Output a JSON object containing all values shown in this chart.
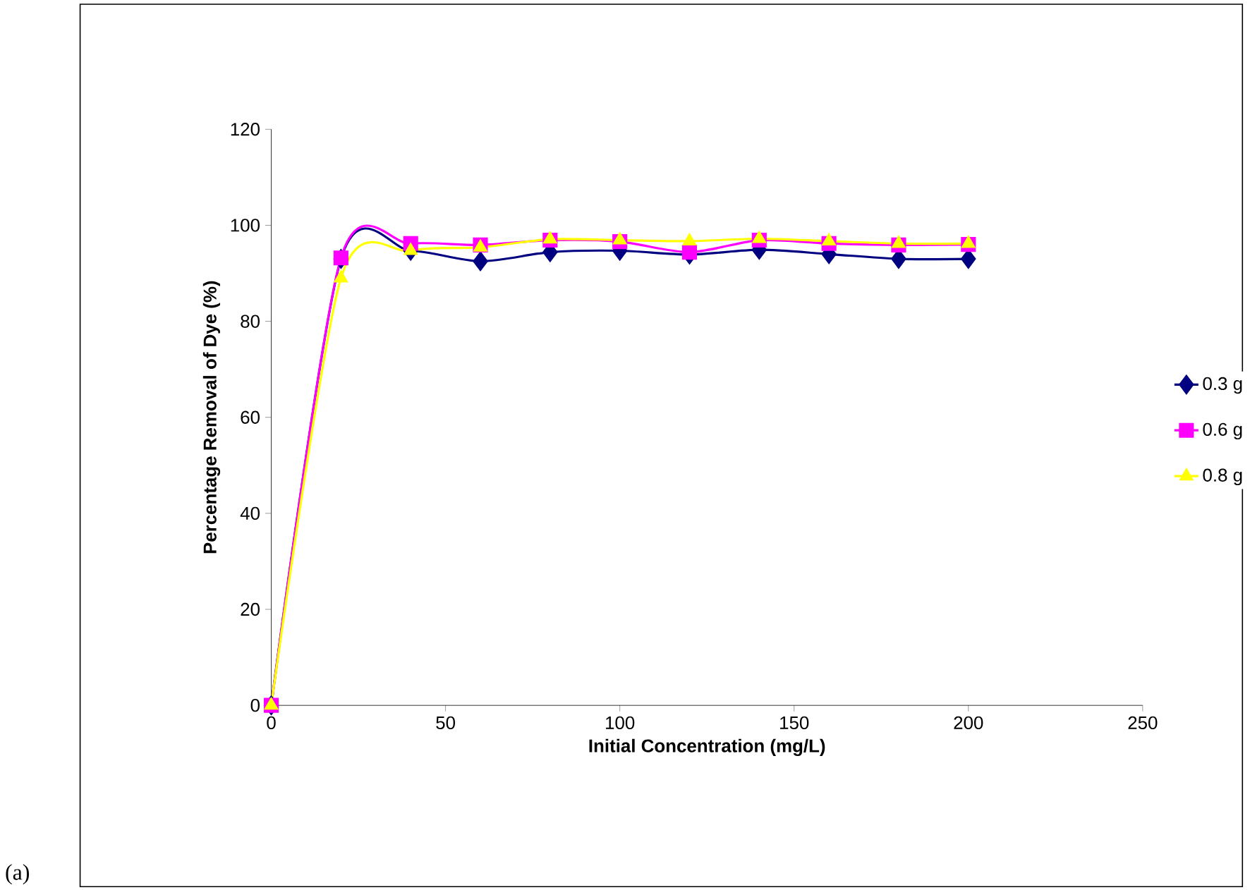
{
  "chart_data": {
    "type": "line",
    "xlabel": "Initial Concentration (mg/L)",
    "ylabel": "Percentage Removal of Dye (%)",
    "x": [
      0,
      20,
      40,
      60,
      80,
      100,
      120,
      140,
      160,
      180,
      200
    ],
    "series": [
      {
        "name": "0.3 g",
        "color": "#000080",
        "marker": "diamond",
        "values": [
          0,
          93,
          94.7,
          92.5,
          94.4,
          94.7,
          93.9,
          94.9,
          94,
          93,
          93
        ]
      },
      {
        "name": "0.6 g",
        "color": "#ff00ff",
        "marker": "square",
        "values": [
          0,
          93.2,
          96.2,
          95.9,
          96.9,
          96.6,
          94.4,
          96.9,
          96.2,
          95.9,
          96
        ]
      },
      {
        "name": "0.8 g",
        "color": "#ffff00",
        "marker": "triangle",
        "values": [
          0,
          89,
          94.7,
          95.4,
          97.1,
          96.9,
          96.7,
          97.2,
          96.7,
          96.2,
          96.2
        ]
      }
    ],
    "xlim": [
      0,
      250
    ],
    "ylim": [
      0,
      120
    ],
    "xticks": [
      0,
      50,
      100,
      150,
      200,
      250
    ],
    "yticks": [
      0,
      20,
      40,
      60,
      80,
      100,
      120
    ],
    "grid": false,
    "legend": "right",
    "annotations": [
      "(a)"
    ]
  }
}
